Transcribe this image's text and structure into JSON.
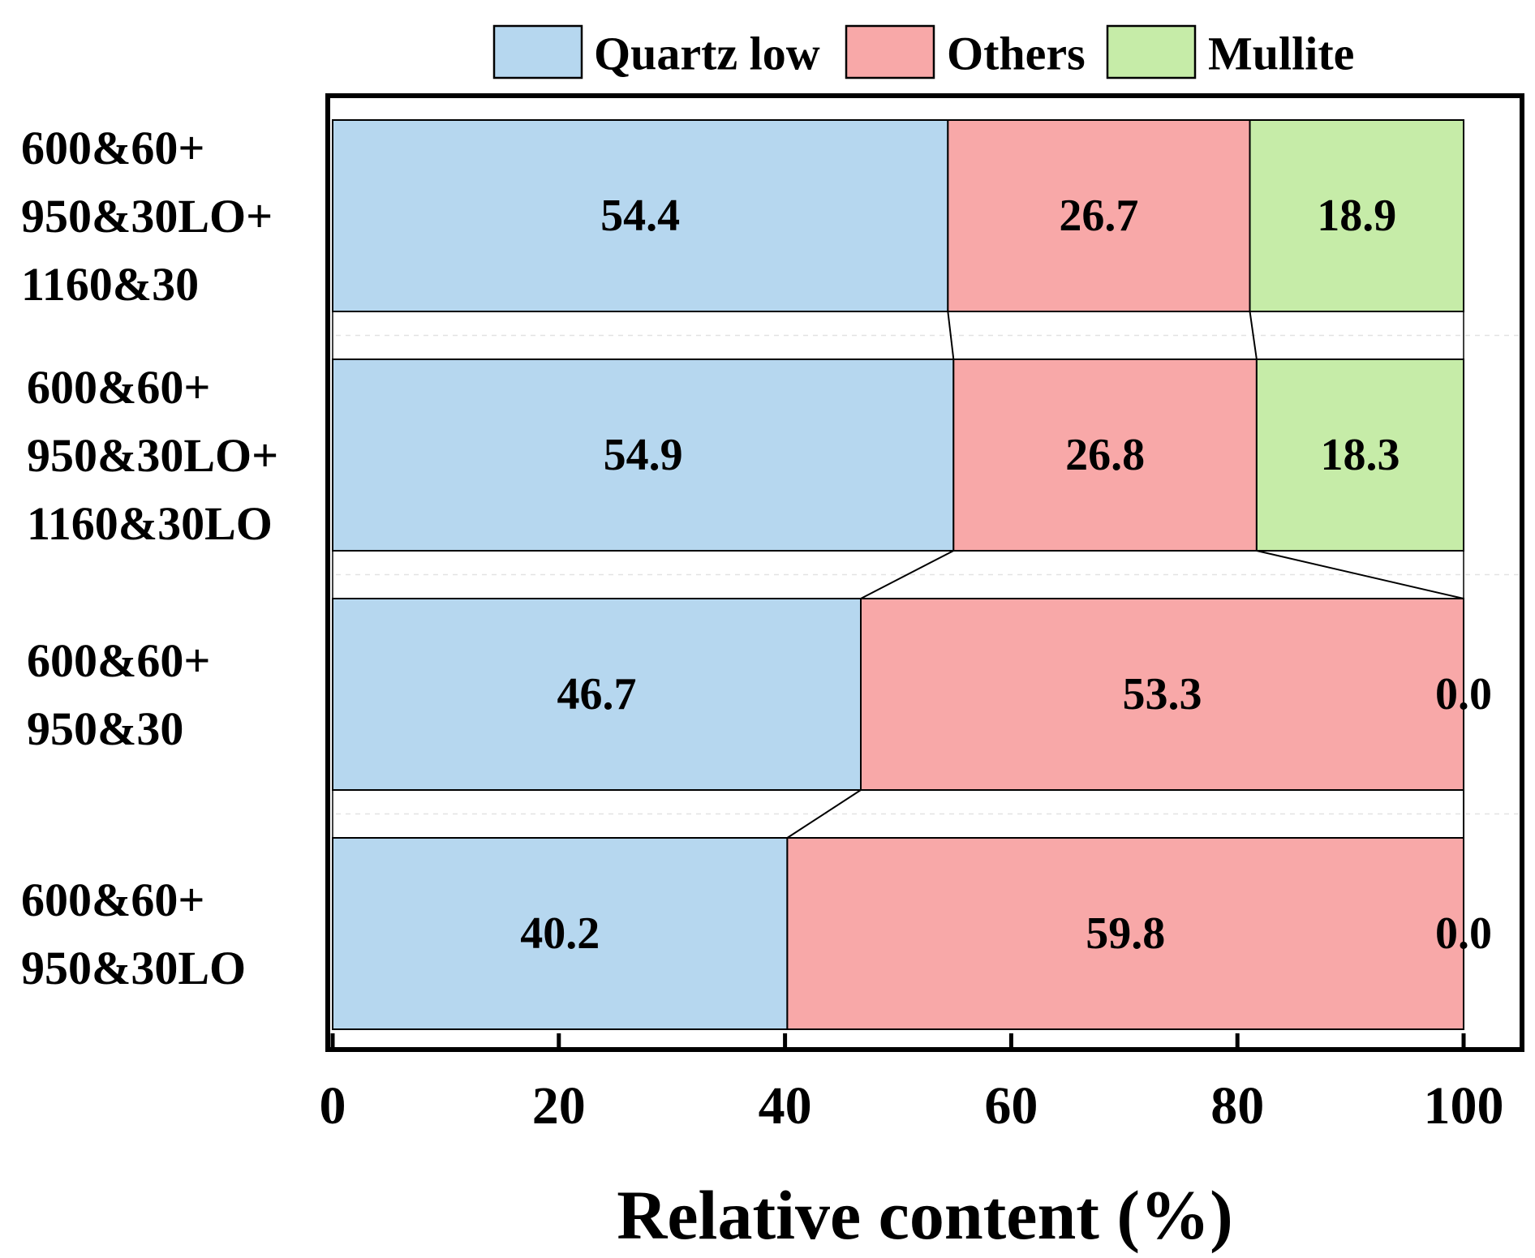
{
  "chart_data": {
    "type": "bar",
    "orientation": "horizontal",
    "stacked": true,
    "categories": [
      [
        "600&60+",
        "950&30LO+",
        "1160&30"
      ],
      [
        "600&60+",
        "950&30LO+",
        "1160&30LO"
      ],
      [
        "600&60+",
        "950&30"
      ],
      [
        "600&60+",
        "950&30LO"
      ]
    ],
    "series": [
      {
        "name": "Quartz low",
        "color": "#b6d7ef",
        "values": [
          54.4,
          54.9,
          46.7,
          40.2
        ],
        "labels": [
          "54.4",
          "54.9",
          "46.7",
          "40.2"
        ]
      },
      {
        "name": "Others",
        "color": "#f8a8a8",
        "values": [
          26.7,
          26.8,
          53.3,
          59.8
        ],
        "labels": [
          "26.7",
          "26.8",
          "53.3",
          "59.8"
        ]
      },
      {
        "name": "Mullite",
        "color": "#c6eca8",
        "values": [
          18.9,
          18.3,
          0.0,
          0.0
        ],
        "labels": [
          "18.9",
          "18.3",
          "0.0",
          "0.0"
        ]
      }
    ],
    "xlabel": "Relative content (%)",
    "ylabel": "",
    "xlim": [
      0,
      100
    ],
    "xticks": [
      0,
      20,
      40,
      60,
      80,
      100
    ],
    "xtick_labels": [
      "0",
      "20",
      "40",
      "60",
      "80",
      "100"
    ],
    "legend_position": "top",
    "connector_lines": true,
    "grid": false
  }
}
